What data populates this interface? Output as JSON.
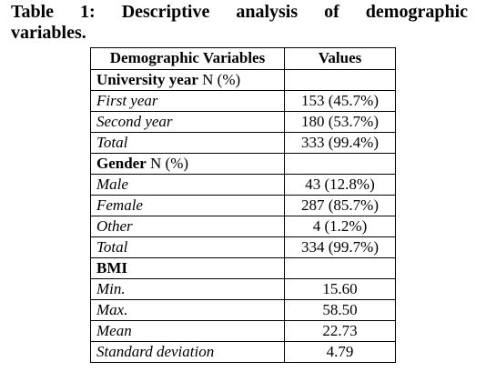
{
  "caption": {
    "line1": [
      "Table",
      "1:",
      "Descriptive",
      "analysis",
      "of",
      "demographic"
    ],
    "line2": "variables."
  },
  "table": {
    "headers": [
      "Demographic Variables",
      "Values"
    ],
    "sections": [
      {
        "title": "University year",
        "unit": "N (%)",
        "rows": [
          {
            "label": "First year",
            "value": "153 (45.7%)"
          },
          {
            "label": "Second year",
            "value": "180 (53.7%)"
          },
          {
            "label": "Total",
            "value": "333 (99.4%)"
          }
        ]
      },
      {
        "title": "Gender",
        "unit": "N (%)",
        "rows": [
          {
            "label": "Male",
            "value": "43 (12.8%)"
          },
          {
            "label": "Female",
            "value": "287 (85.7%)"
          },
          {
            "label": "Other",
            "value": "4 (1.2%)"
          },
          {
            "label": "Total",
            "value": "334 (99.7%)"
          }
        ]
      },
      {
        "title": "BMI",
        "unit": "",
        "rows": [
          {
            "label": "Min.",
            "value": "15.60"
          },
          {
            "label": "Max.",
            "value": "58.50"
          },
          {
            "label": "Mean",
            "value": "22.73"
          },
          {
            "label": "Standard deviation",
            "value": "4.79"
          }
        ]
      }
    ]
  }
}
